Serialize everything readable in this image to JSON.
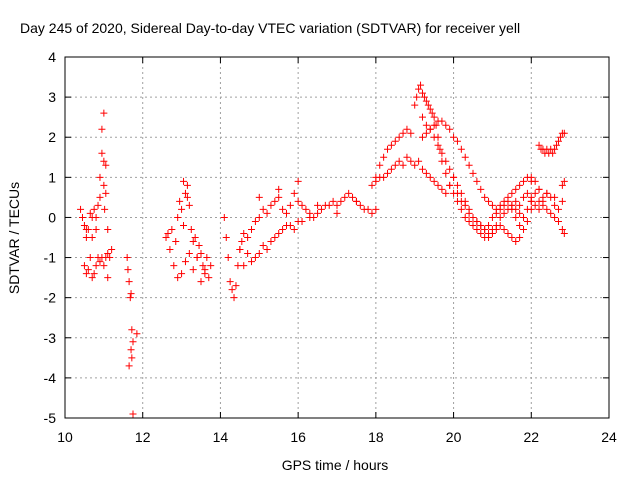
{
  "chart_data": {
    "type": "scatter",
    "title": "Day 245 of 2020, Sidereal Day-to-day VTEC variation (SDTVAR) for receiver yell",
    "xlabel": "GPS time / hours",
    "ylabel": "SDTVAR / TECUs",
    "xlim": [
      10,
      24
    ],
    "ylim": [
      -5,
      4
    ],
    "xticks": [
      10,
      12,
      14,
      16,
      18,
      20,
      22,
      24
    ],
    "yticks": [
      -5,
      -4,
      -3,
      -2,
      -1,
      0,
      1,
      2,
      3,
      4
    ],
    "xtick_labels": [
      "10",
      "12",
      "14",
      "16",
      "18",
      "20",
      "22",
      "24"
    ],
    "ytick_labels": [
      "-5",
      "-4",
      "-3",
      "-2",
      "-1",
      "0",
      "1",
      "2",
      "3",
      "4"
    ],
    "grid": true,
    "marker": "+",
    "color": "#ff0000",
    "series": [
      {
        "name": "SDTVAR",
        "x": [
          10.4,
          10.45,
          10.5,
          10.55,
          10.55,
          10.6,
          10.65,
          10.7,
          10.7,
          10.75,
          10.8,
          10.8,
          10.85,
          10.9,
          10.9,
          10.95,
          10.95,
          11.0,
          11.0,
          11.0,
          11.02,
          11.05,
          11.05,
          11.1,
          11.1,
          11.15,
          11.2,
          10.5,
          10.55,
          10.6,
          10.65,
          10.7,
          10.75,
          10.8,
          10.85,
          10.9,
          10.95,
          11.0,
          11.05,
          11.1,
          11.6,
          11.62,
          11.65,
          11.68,
          11.7,
          11.72,
          11.75,
          11.65,
          11.7,
          11.72,
          11.85,
          11.75,
          12.6,
          12.65,
          12.7,
          12.75,
          12.8,
          12.85,
          12.9,
          12.95,
          13.0,
          13.05,
          13.1,
          13.15,
          13.2,
          13.25,
          13.3,
          13.35,
          13.4,
          13.45,
          13.5,
          13.55,
          13.6,
          13.65,
          13.7,
          13.75,
          12.9,
          13.0,
          13.1,
          13.2,
          13.3,
          13.4,
          13.5,
          13.6,
          13.05,
          13.15,
          14.1,
          14.15,
          14.2,
          14.25,
          14.3,
          14.35,
          14.4,
          14.45,
          14.5,
          14.55,
          14.6,
          14.7,
          14.8,
          14.9,
          15.0,
          15.1,
          15.2,
          15.3,
          15.4,
          15.5,
          15.6,
          15.7,
          15.8,
          15.9,
          16.0,
          16.1,
          16.2,
          16.3,
          16.4,
          16.5,
          16.6,
          16.7,
          16.8,
          16.9,
          17.0,
          17.1,
          17.2,
          17.3,
          17.4,
          17.5,
          17.6,
          17.7,
          17.8,
          17.9,
          18.0,
          14.5,
          14.7,
          14.9,
          15.1,
          15.3,
          15.5,
          15.7,
          15.9,
          16.1,
          16.3,
          14.6,
          14.8,
          15.0,
          15.2,
          15.4,
          15.6,
          15.8,
          16.0,
          15.0,
          15.5,
          16.0,
          16.5,
          17.0,
          17.5,
          18.0,
          18.1,
          18.2,
          18.3,
          18.4,
          18.5,
          18.6,
          18.7,
          18.8,
          18.9,
          17.9,
          18.0,
          18.1,
          18.2,
          18.3,
          18.4,
          18.5,
          18.6,
          18.7,
          18.8,
          18.9,
          19.0,
          19.1,
          19.2,
          19.3,
          19.4,
          19.5,
          19.6,
          19.7,
          19.8,
          19.9,
          20.0,
          19.0,
          19.05,
          19.1,
          19.15,
          19.2,
          19.25,
          19.3,
          19.35,
          19.4,
          19.45,
          19.5,
          19.55,
          19.6,
          19.65,
          19.7,
          19.8,
          19.9,
          20.0,
          20.1,
          20.2,
          20.3,
          20.4,
          20.5,
          20.6,
          20.7,
          20.8,
          20.9,
          21.0,
          21.1,
          21.2,
          21.3,
          21.4,
          21.5,
          21.6,
          21.7,
          21.8,
          21.9,
          22.0,
          19.2,
          19.3,
          19.4,
          19.5,
          19.6,
          19.7,
          19.8,
          19.9,
          20.0,
          20.1,
          20.2,
          20.3,
          20.4,
          20.5,
          20.6,
          20.7,
          20.8,
          20.9,
          21.0,
          21.1,
          21.2,
          21.3,
          21.4,
          21.5,
          21.6,
          21.7,
          21.8,
          21.9,
          22.0,
          19.2,
          19.3,
          19.4,
          19.5,
          19.6,
          19.7,
          19.8,
          19.9,
          20.0,
          20.1,
          20.2,
          20.3,
          20.4,
          20.5,
          20.6,
          20.7,
          20.8,
          20.9,
          21.0,
          21.1,
          21.2,
          21.3,
          21.4,
          21.5,
          21.6,
          21.7,
          21.8,
          21.9,
          22.0,
          22.1,
          22.2,
          22.3,
          20.1,
          20.2,
          20.3,
          20.4,
          20.5,
          20.6,
          20.7,
          20.8,
          20.9,
          21.0,
          21.1,
          21.2,
          21.3,
          21.4,
          21.5,
          21.6,
          21.7,
          21.8,
          21.5,
          21.6,
          21.7,
          21.8,
          21.9,
          22.0,
          22.1,
          22.2,
          22.3,
          22.4,
          22.5,
          22.6,
          22.7,
          22.8,
          22.2,
          22.25,
          22.3,
          22.35,
          22.4,
          22.45,
          22.5,
          22.55,
          22.6,
          22.65,
          22.7,
          22.75,
          22.8,
          22.85,
          22.0,
          22.1,
          22.2,
          22.3,
          22.4,
          22.5,
          22.6,
          22.7,
          22.8,
          22.85,
          22.0,
          22.2,
          22.4,
          22.6,
          22.8,
          22.85
        ],
        "y": [
          0.2,
          0.0,
          -0.2,
          -0.3,
          -0.5,
          -0.3,
          0.1,
          0.0,
          -0.5,
          0.2,
          0.0,
          -0.3,
          0.3,
          0.5,
          1.0,
          1.6,
          2.2,
          2.6,
          1.4,
          0.8,
          0.2,
          1.3,
          0.6,
          -0.3,
          -0.9,
          -1.0,
          -0.8,
          -1.2,
          -1.4,
          -1.3,
          -1.0,
          -1.5,
          -1.4,
          -1.2,
          -1.0,
          -1.1,
          -1.0,
          -1.2,
          -1.0,
          -1.5,
          -1.0,
          -1.3,
          -1.6,
          -2.0,
          -1.9,
          -2.8,
          -3.1,
          -3.7,
          -3.3,
          -3.5,
          -2.9,
          -4.9,
          -0.5,
          -0.4,
          -0.8,
          -0.3,
          -1.2,
          -0.6,
          0.0,
          0.4,
          0.2,
          -0.2,
          0.6,
          0.8,
          0.3,
          -0.3,
          -0.6,
          -0.5,
          -1.0,
          -0.7,
          -0.9,
          -1.2,
          -1.3,
          -1.0,
          -1.5,
          -1.2,
          -1.5,
          -1.4,
          -1.1,
          -0.9,
          -1.3,
          -1.0,
          -1.6,
          -1.4,
          0.9,
          0.5,
          0.0,
          -0.5,
          -1.0,
          -1.6,
          -1.8,
          -2.0,
          -1.7,
          -1.2,
          -0.8,
          -0.6,
          -0.4,
          -0.5,
          -0.3,
          -0.1,
          0.0,
          0.2,
          0.1,
          0.3,
          0.4,
          0.5,
          0.2,
          0.1,
          0.3,
          0.6,
          0.4,
          0.3,
          0.2,
          0.1,
          0.0,
          0.1,
          0.2,
          0.3,
          0.3,
          0.4,
          0.3,
          0.4,
          0.5,
          0.6,
          0.5,
          0.4,
          0.3,
          0.2,
          0.2,
          0.1,
          0.2,
          -0.8,
          -0.9,
          -1.0,
          -0.7,
          -0.6,
          -0.4,
          -0.2,
          -0.3,
          -0.1,
          0.0,
          -1.2,
          -1.1,
          -0.9,
          -0.8,
          -0.5,
          -0.3,
          -0.2,
          -0.1,
          0.5,
          0.7,
          0.9,
          0.3,
          0.1,
          0.4,
          1.0,
          1.3,
          1.5,
          1.7,
          1.8,
          1.9,
          2.0,
          2.1,
          2.2,
          2.1,
          0.8,
          0.9,
          1.0,
          1.0,
          1.1,
          1.2,
          1.3,
          1.4,
          1.3,
          1.5,
          1.4,
          1.3,
          1.4,
          1.2,
          1.1,
          1.0,
          0.9,
          0.8,
          0.7,
          0.6,
          0.8,
          1.0,
          2.8,
          3.0,
          3.2,
          3.3,
          3.1,
          3.0,
          2.9,
          2.8,
          2.7,
          2.6,
          2.5,
          2.3,
          2.0,
          1.7,
          1.4,
          1.1,
          0.8,
          0.6,
          0.4,
          0.2,
          0.0,
          -0.1,
          -0.2,
          -0.3,
          -0.4,
          -0.5,
          -0.5,
          -0.4,
          -0.3,
          -0.2,
          -0.3,
          -0.4,
          -0.5,
          -0.6,
          -0.5,
          -0.3,
          -0.1,
          0.2,
          2.5,
          2.3,
          2.2,
          2.0,
          1.8,
          1.6,
          1.4,
          1.2,
          1.0,
          0.8,
          0.6,
          0.4,
          0.2,
          0.0,
          -0.1,
          -0.2,
          -0.3,
          -0.2,
          0.0,
          0.1,
          0.2,
          0.3,
          0.4,
          0.2,
          0.0,
          -0.2,
          0.0,
          0.2,
          0.4,
          2.0,
          2.1,
          2.2,
          2.3,
          2.4,
          2.4,
          2.3,
          2.2,
          2.0,
          1.9,
          1.7,
          1.5,
          1.3,
          1.1,
          0.9,
          0.7,
          0.5,
          0.4,
          0.3,
          0.2,
          0.3,
          0.4,
          0.5,
          0.6,
          0.7,
          0.8,
          0.9,
          1.0,
          1.0,
          0.9,
          0.7,
          0.5,
          0.6,
          0.4,
          0.3,
          0.1,
          0.0,
          -0.1,
          -0.2,
          -0.3,
          -0.4,
          -0.3,
          -0.2,
          0.0,
          0.1,
          0.2,
          0.3,
          0.2,
          0.1,
          0.0,
          0.3,
          0.4,
          0.3,
          0.5,
          0.6,
          0.4,
          0.3,
          0.2,
          0.4,
          0.6,
          0.5,
          0.3,
          0.2,
          0.4,
          1.8,
          1.7,
          1.7,
          1.6,
          1.7,
          1.6,
          1.7,
          1.6,
          1.7,
          1.8,
          1.9,
          2.0,
          2.1,
          2.1,
          0.5,
          0.6,
          0.4,
          0.3,
          0.2,
          0.1,
          0.0,
          -0.1,
          -0.3,
          -0.4,
          0.9,
          0.7,
          0.6,
          0.5,
          0.8,
          0.9
        ]
      }
    ]
  }
}
